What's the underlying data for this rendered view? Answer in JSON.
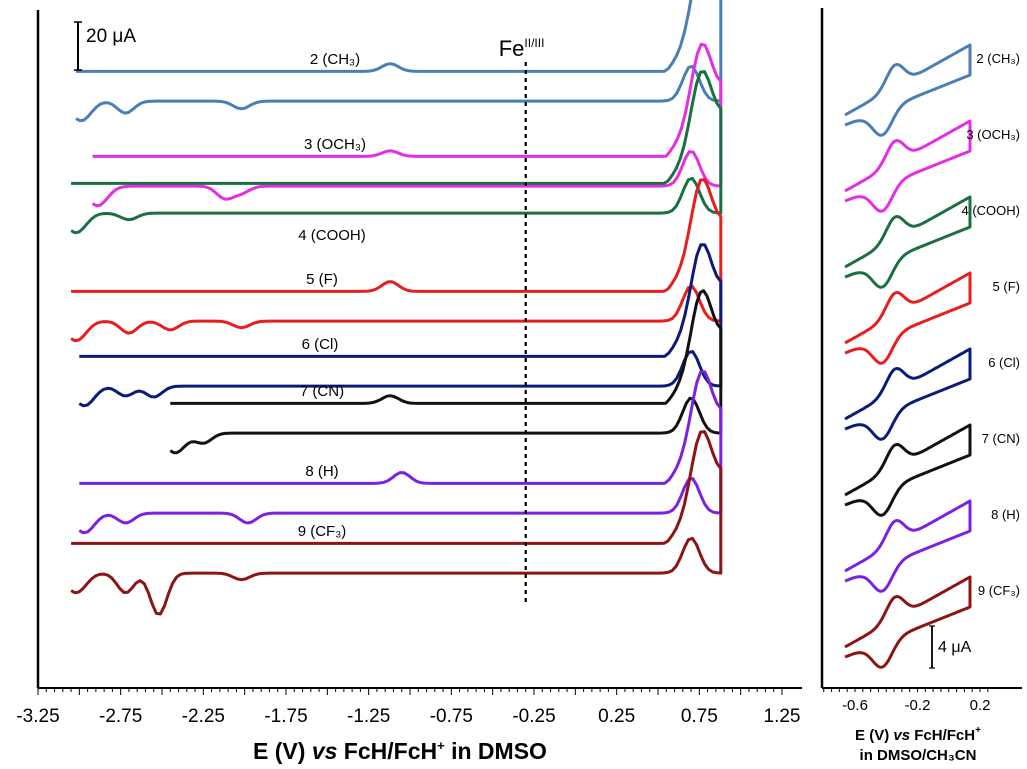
{
  "chart_data": [
    {
      "type": "line",
      "panel": "main",
      "xlabel_parts": [
        "E (V) ",
        "vs",
        " FcH/FcH",
        "+",
        " in DMSO"
      ],
      "xlim": [
        -3.25,
        1.25
      ],
      "x_ticks": [
        -3.25,
        -2.75,
        -2.25,
        -1.75,
        -1.25,
        -0.75,
        -0.25,
        0.25,
        0.75,
        1.25
      ],
      "x_tick_labels": [
        "-3.25",
        "-2.75",
        "-2.25",
        "-1.75",
        "-1.25",
        "-0.75",
        "-0.25",
        "0.25",
        "0.75",
        "1.25"
      ],
      "scale_bar": "20 μA",
      "annotation": {
        "base": "Fe",
        "sup": "II/III",
        "x": -0.3
      },
      "series": [
        {
          "name": "2 (CH₃)",
          "color": "#4a7fb5",
          "offset": 0,
          "start": -3.02,
          "end": 0.88,
          "peaks": [
            {
              "x": -2.02,
              "y": -0.35
            },
            {
              "x": -2.72,
              "y": -0.55
            }
          ],
          "returnPeaks": [
            {
              "x": -1.12,
              "y": 0.35
            }
          ]
        },
        {
          "name": "3 (OCH₃)",
          "color": "#e62de6",
          "offset": 1,
          "start": -2.92,
          "end": 0.88,
          "peaks": [
            {
              "x": -2.12,
              "y": -0.55
            },
            {
              "x": -2.02,
              "y": -0.3
            }
          ],
          "returnPeaks": [
            {
              "x": -1.12,
              "y": 0.25
            }
          ]
        },
        {
          "name": "4 (COOH)",
          "color": "#1a7040",
          "offset": 2,
          "start": -3.05,
          "end": 0.88,
          "peaks": [
            {
              "x": -2.7,
              "y": -0.3
            }
          ],
          "returnPeaks": []
        },
        {
          "name": "5 (F)",
          "color": "#e61e1e",
          "offset": 3,
          "start": -3.05,
          "end": 0.88,
          "peaks": [
            {
              "x": -2.45,
              "y": -0.4
            },
            {
              "x": -2.02,
              "y": -0.3
            },
            {
              "x": -2.7,
              "y": -0.55
            }
          ],
          "returnPeaks": [
            {
              "x": -1.12,
              "y": 0.45
            }
          ]
        },
        {
          "name": "6 (Cl)",
          "color": "#0a1c78",
          "offset": 4,
          "start": -3.0,
          "end": 0.88,
          "peaks": [
            {
              "x": -2.55,
              "y": -0.5
            },
            {
              "x": -2.72,
              "y": -0.45
            }
          ],
          "returnPeaks": []
        },
        {
          "name": "7 (CN)",
          "color": "#111111",
          "offset": 5,
          "start": -2.45,
          "end": 0.88,
          "peaks": [
            {
              "x": -2.25,
              "y": -0.45
            }
          ],
          "returnPeaks": [
            {
              "x": -1.12,
              "y": 0.35
            }
          ]
        },
        {
          "name": "8 (H)",
          "color": "#7a22e0",
          "offset": 6,
          "start": -3.0,
          "end": 0.88,
          "peaks": [
            {
              "x": -1.98,
              "y": -0.45
            },
            {
              "x": -2.72,
              "y": -0.45
            }
          ],
          "returnPeaks": [
            {
              "x": -1.05,
              "y": 0.5
            }
          ]
        },
        {
          "name": "9 (CF₃)",
          "color": "#8c1414",
          "offset": 7,
          "start": -3.05,
          "end": 0.88,
          "peaks": [
            {
              "x": -2.52,
              "y": -1.9
            },
            {
              "x": -2.72,
              "y": -0.9
            },
            {
              "x": -2.02,
              "y": -0.3
            }
          ],
          "returnPeaks": []
        }
      ]
    },
    {
      "type": "line",
      "panel": "inset",
      "xlabel_parts": [
        "E (V) ",
        "vs",
        " FcH/FcH",
        "+"
      ],
      "xlabel_line2": "in DMSO/CH₃CN",
      "x_ticks": [
        -0.6,
        -0.2,
        0.2
      ],
      "x_tick_labels": [
        "-0.6",
        "-0.2",
        "0.2"
      ],
      "scale_bar": "4 μA",
      "series": [
        {
          "name": "2 (CH₃)",
          "color": "#4a7fb5",
          "offset": 0
        },
        {
          "name": "3 (OCH₃)",
          "color": "#e62de6",
          "offset": 1
        },
        {
          "name": "4 (COOH)",
          "color": "#1a7040",
          "offset": 2
        },
        {
          "name": "5 (F)",
          "color": "#e61e1e",
          "offset": 3
        },
        {
          "name": "6 (Cl)",
          "color": "#0a1c78",
          "offset": 4
        },
        {
          "name": "7 (CN)",
          "color": "#111111",
          "offset": 5
        },
        {
          "name": "8 (H)",
          "color": "#7a22e0",
          "offset": 6
        },
        {
          "name": "9 (CF₃)",
          "color": "#8c1414",
          "offset": 7
        }
      ]
    }
  ]
}
